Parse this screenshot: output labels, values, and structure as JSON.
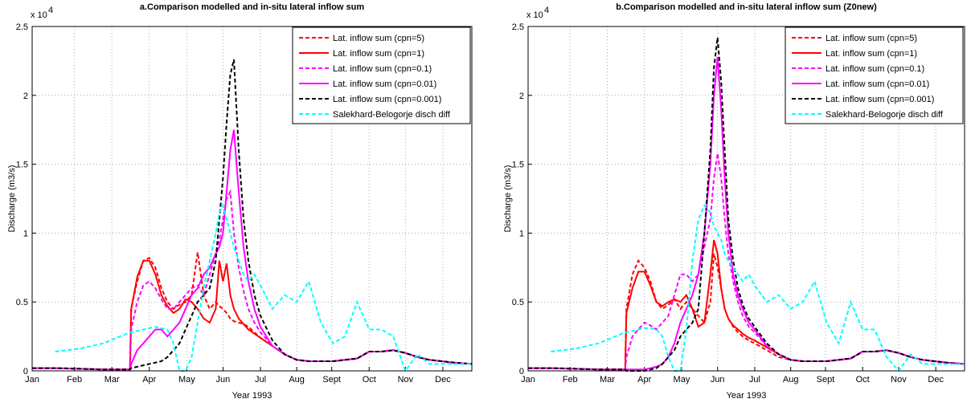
{
  "chart_data": [
    {
      "type": "line",
      "title": "a.Comparison modelled and in-situ lateral inflow sum",
      "x_label": "Year 1993",
      "y_label": "Discharge (m3/s)",
      "y_multiplier": "x 10",
      "y_multiplier_exponent": "4",
      "grid": true,
      "legend": "upper right",
      "xlim": [
        1,
        365
      ],
      "xticks": [
        {
          "value": 1,
          "label": "Jan"
        },
        {
          "value": 36,
          "label": "Feb"
        },
        {
          "value": 67,
          "label": "Mar"
        },
        {
          "value": 98,
          "label": "Apr"
        },
        {
          "value": 129,
          "label": "May"
        },
        {
          "value": 159,
          "label": "Jun"
        },
        {
          "value": 190,
          "label": "Jul"
        },
        {
          "value": 220,
          "label": "Aug"
        },
        {
          "value": 249,
          "label": "Sept"
        },
        {
          "value": 280,
          "label": "Oct"
        },
        {
          "value": 310,
          "label": "Nov"
        },
        {
          "value": 341,
          "label": "Dec"
        }
      ],
      "ylim": [
        0,
        2.5
      ],
      "yticks": [
        0,
        0.5,
        1,
        1.5,
        2,
        2.5
      ],
      "x": [
        1,
        20,
        40,
        60,
        82,
        83,
        88,
        93,
        98,
        103,
        108,
        113,
        118,
        123,
        128,
        133,
        138,
        143,
        148,
        153,
        156,
        159,
        162,
        165,
        168,
        172,
        176,
        180,
        185,
        190,
        200,
        210,
        220,
        230,
        240,
        250,
        260,
        270,
        280,
        290,
        300,
        310,
        320,
        330,
        340,
        350,
        365
      ],
      "series": [
        {
          "name": "Lat. inflow sum (cpn=5)",
          "color": "#ff0000",
          "dashed": true,
          "values": [
            0.02,
            0.02,
            0.015,
            0.01,
            0.01,
            0.45,
            0.65,
            0.8,
            0.82,
            0.75,
            0.6,
            0.5,
            0.45,
            0.48,
            0.5,
            0.55,
            0.86,
            0.55,
            0.45,
            0.5,
            0.47,
            0.45,
            0.42,
            0.38,
            0.36,
            0.35,
            0.34,
            0.32,
            0.28,
            0.24,
            0.18,
            0.12,
            0.08,
            0.07,
            0.07,
            0.07,
            0.08,
            0.09,
            0.14,
            0.14,
            0.15,
            0.13,
            0.1,
            0.08,
            0.07,
            0.06,
            0.05
          ]
        },
        {
          "name": "Lat. inflow sum (cpn=1)",
          "color": "#ff0000",
          "dashed": false,
          "values": [
            0.02,
            0.02,
            0.015,
            0.01,
            0.01,
            0.45,
            0.68,
            0.8,
            0.8,
            0.7,
            0.55,
            0.47,
            0.42,
            0.45,
            0.52,
            0.5,
            0.45,
            0.38,
            0.35,
            0.45,
            0.8,
            0.65,
            0.78,
            0.55,
            0.45,
            0.38,
            0.34,
            0.3,
            0.27,
            0.24,
            0.18,
            0.12,
            0.08,
            0.07,
            0.07,
            0.07,
            0.08,
            0.09,
            0.14,
            0.14,
            0.15,
            0.13,
            0.1,
            0.08,
            0.07,
            0.06,
            0.05
          ]
        },
        {
          "name": "Lat. inflow sum (cpn=0.1)",
          "color": "#ff00ff",
          "dashed": true,
          "values": [
            0.02,
            0.02,
            0.015,
            0.01,
            0.01,
            0.3,
            0.5,
            0.62,
            0.65,
            0.6,
            0.52,
            0.45,
            0.45,
            0.5,
            0.55,
            0.6,
            0.62,
            0.55,
            0.7,
            0.85,
            0.95,
            1.1,
            1.25,
            1.3,
            1.0,
            0.75,
            0.58,
            0.45,
            0.35,
            0.28,
            0.18,
            0.12,
            0.08,
            0.07,
            0.07,
            0.07,
            0.08,
            0.09,
            0.14,
            0.14,
            0.15,
            0.13,
            0.1,
            0.08,
            0.07,
            0.06,
            0.05
          ]
        },
        {
          "name": "Lat. inflow sum (cpn=0.01)",
          "color": "#ff00ff",
          "dashed": false,
          "values": [
            0.02,
            0.02,
            0.015,
            0.01,
            0.01,
            0.05,
            0.15,
            0.2,
            0.25,
            0.3,
            0.3,
            0.25,
            0.3,
            0.35,
            0.45,
            0.55,
            0.6,
            0.7,
            0.75,
            0.85,
            0.9,
            1.0,
            1.3,
            1.6,
            1.75,
            1.3,
            0.9,
            0.65,
            0.45,
            0.32,
            0.18,
            0.12,
            0.08,
            0.07,
            0.07,
            0.07,
            0.08,
            0.09,
            0.14,
            0.14,
            0.15,
            0.13,
            0.1,
            0.08,
            0.07,
            0.06,
            0.05
          ]
        },
        {
          "name": "Lat. inflow sum (cpn=0.001)",
          "color": "#000000",
          "dashed": true,
          "values": [
            0.02,
            0.02,
            0.015,
            0.01,
            0.01,
            0.02,
            0.03,
            0.04,
            0.05,
            0.06,
            0.07,
            0.1,
            0.15,
            0.2,
            0.3,
            0.4,
            0.5,
            0.55,
            0.6,
            0.8,
            1.1,
            1.4,
            1.8,
            2.15,
            2.26,
            1.6,
            1.1,
            0.8,
            0.55,
            0.4,
            0.22,
            0.12,
            0.08,
            0.07,
            0.07,
            0.07,
            0.08,
            0.09,
            0.14,
            0.14,
            0.15,
            0.13,
            0.1,
            0.08,
            0.07,
            0.06,
            0.05
          ]
        },
        {
          "name": "Salekhard-Belogorje disch diff",
          "color": "#00ffff",
          "dashed": true,
          "values": [
            null,
            0.14,
            0.16,
            0.2,
            0.28,
            0.28,
            0.29,
            0.3,
            0.31,
            0.32,
            0.31,
            0.3,
            0.2,
            0.0,
            0.0,
            0.1,
            0.35,
            0.6,
            0.8,
            1.0,
            1.15,
            1.2,
            1.1,
            1.0,
            0.9,
            0.8,
            0.7,
            0.65,
            0.7,
            0.62,
            0.45,
            0.55,
            0.5,
            0.65,
            0.35,
            0.2,
            0.25,
            0.5,
            0.3,
            0.3,
            0.25,
            0.0,
            0.12,
            0.05,
            0.05,
            0.05,
            0.05
          ]
        }
      ]
    },
    {
      "type": "line",
      "title": "b.Comparison modelled and in-situ lateral inflow sum (Z0new)",
      "x_label": "Year 1993",
      "y_label": "Discharge (m3/s)",
      "y_multiplier": "x 10",
      "y_multiplier_exponent": "4",
      "grid": true,
      "legend": "upper right",
      "xlim": [
        1,
        365
      ],
      "xticks": [
        {
          "value": 1,
          "label": "Jan"
        },
        {
          "value": 36,
          "label": "Feb"
        },
        {
          "value": 67,
          "label": "Mar"
        },
        {
          "value": 98,
          "label": "Apr"
        },
        {
          "value": 129,
          "label": "May"
        },
        {
          "value": 159,
          "label": "Jun"
        },
        {
          "value": 190,
          "label": "Jul"
        },
        {
          "value": 220,
          "label": "Aug"
        },
        {
          "value": 249,
          "label": "Sept"
        },
        {
          "value": 280,
          "label": "Oct"
        },
        {
          "value": 310,
          "label": "Nov"
        },
        {
          "value": 341,
          "label": "Dec"
        }
      ],
      "ylim": [
        0,
        2.5
      ],
      "yticks": [
        0,
        0.5,
        1,
        1.5,
        2,
        2.5
      ],
      "x": [
        1,
        20,
        40,
        60,
        82,
        83,
        88,
        93,
        98,
        103,
        108,
        113,
        118,
        123,
        128,
        133,
        138,
        143,
        148,
        153,
        156,
        159,
        162,
        165,
        168,
        172,
        176,
        180,
        185,
        190,
        200,
        210,
        220,
        230,
        240,
        250,
        260,
        270,
        280,
        290,
        300,
        310,
        320,
        330,
        340,
        350,
        365
      ],
      "series": [
        {
          "name": "Lat. inflow sum (cpn=5)",
          "color": "#ff0000",
          "dashed": true,
          "values": [
            0.02,
            0.02,
            0.015,
            0.01,
            0.01,
            0.45,
            0.7,
            0.8,
            0.75,
            0.65,
            0.5,
            0.45,
            0.48,
            0.52,
            0.45,
            0.5,
            0.45,
            0.4,
            0.35,
            0.5,
            0.85,
            0.75,
            0.6,
            0.45,
            0.38,
            0.32,
            0.28,
            0.25,
            0.22,
            0.2,
            0.15,
            0.1,
            0.08,
            0.07,
            0.07,
            0.07,
            0.08,
            0.09,
            0.14,
            0.14,
            0.15,
            0.13,
            0.1,
            0.08,
            0.07,
            0.06,
            0.05
          ]
        },
        {
          "name": "Lat. inflow sum (cpn=1)",
          "color": "#ff0000",
          "dashed": false,
          "values": [
            0.02,
            0.02,
            0.015,
            0.01,
            0.01,
            0.42,
            0.6,
            0.72,
            0.72,
            0.62,
            0.5,
            0.47,
            0.5,
            0.52,
            0.5,
            0.55,
            0.45,
            0.32,
            0.35,
            0.7,
            0.95,
            0.85,
            0.6,
            0.45,
            0.38,
            0.33,
            0.3,
            0.27,
            0.24,
            0.22,
            0.17,
            0.12,
            0.08,
            0.07,
            0.07,
            0.07,
            0.08,
            0.09,
            0.14,
            0.14,
            0.15,
            0.13,
            0.1,
            0.08,
            0.07,
            0.06,
            0.05
          ]
        },
        {
          "name": "Lat. inflow sum (cpn=0.1)",
          "color": "#ff00ff",
          "dashed": true,
          "values": [
            0.02,
            0.02,
            0.015,
            0.01,
            0.01,
            0.1,
            0.25,
            0.3,
            0.35,
            0.33,
            0.3,
            0.35,
            0.4,
            0.55,
            0.7,
            0.7,
            0.65,
            0.7,
            0.9,
            1.1,
            1.4,
            1.58,
            1.4,
            1.1,
            0.85,
            0.65,
            0.5,
            0.4,
            0.32,
            0.28,
            0.18,
            0.12,
            0.08,
            0.07,
            0.07,
            0.07,
            0.08,
            0.09,
            0.14,
            0.14,
            0.15,
            0.13,
            0.1,
            0.08,
            0.07,
            0.06,
            0.05
          ]
        },
        {
          "name": "Lat. inflow sum (cpn=0.01)",
          "color": "#ff00ff",
          "dashed": false,
          "values": [
            0.02,
            0.02,
            0.015,
            0.01,
            0.01,
            0.01,
            0.01,
            0.01,
            0.01,
            0.02,
            0.03,
            0.05,
            0.1,
            0.2,
            0.35,
            0.45,
            0.55,
            0.7,
            1.0,
            1.5,
            2.0,
            2.28,
            1.9,
            1.4,
            1.0,
            0.7,
            0.55,
            0.45,
            0.35,
            0.3,
            0.18,
            0.12,
            0.08,
            0.07,
            0.07,
            0.07,
            0.08,
            0.09,
            0.14,
            0.14,
            0.15,
            0.13,
            0.1,
            0.08,
            0.07,
            0.06,
            0.05
          ]
        },
        {
          "name": "Lat. inflow sum (cpn=0.001)",
          "color": "#000000",
          "dashed": true,
          "values": [
            0.02,
            0.02,
            0.015,
            0.01,
            0.01,
            0.0,
            0.0,
            0.0,
            0.0,
            0.01,
            0.02,
            0.05,
            0.1,
            0.15,
            0.25,
            0.3,
            0.35,
            0.45,
            1.0,
            1.6,
            2.2,
            2.42,
            2.1,
            1.6,
            1.1,
            0.8,
            0.6,
            0.48,
            0.38,
            0.32,
            0.2,
            0.12,
            0.08,
            0.07,
            0.07,
            0.07,
            0.08,
            0.09,
            0.14,
            0.14,
            0.15,
            0.13,
            0.1,
            0.08,
            0.07,
            0.06,
            0.05
          ]
        },
        {
          "name": "Salekhard-Belogorje disch diff",
          "color": "#00ffff",
          "dashed": true,
          "values": [
            null,
            0.14,
            0.16,
            0.2,
            0.28,
            0.28,
            0.29,
            0.3,
            0.31,
            0.31,
            0.3,
            0.25,
            0.1,
            0.0,
            0.0,
            0.3,
            0.8,
            1.1,
            1.2,
            1.15,
            1.05,
            1.0,
            0.95,
            0.85,
            0.8,
            0.75,
            0.7,
            0.65,
            0.7,
            0.62,
            0.5,
            0.55,
            0.45,
            0.5,
            0.65,
            0.35,
            0.2,
            0.5,
            0.3,
            0.3,
            0.1,
            0.0,
            0.12,
            0.05,
            0.05,
            0.05,
            0.05
          ]
        }
      ]
    }
  ]
}
